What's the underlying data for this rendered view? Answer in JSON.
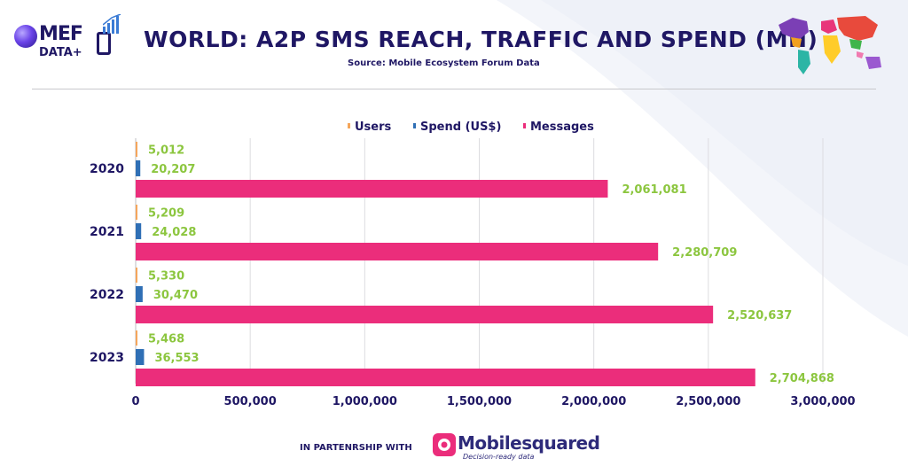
{
  "header": {
    "logo_top": "MEF",
    "logo_bottom": "DATA+",
    "title": "WORLD: A2P SMS REACH, TRAFFIC AND SPEND (MN)",
    "subtitle": "Source: Mobile Ecosystem Forum Data"
  },
  "footer": {
    "partnership_label": "IN PARTENRSHIP WITH",
    "partner_name": "Mobilesquared",
    "partner_tagline": "Decision-ready data"
  },
  "colors": {
    "users": "#f5a65b",
    "spend": "#2f6fb5",
    "messages": "#eb2d7b",
    "data_label": "#8cc63f",
    "title": "#1f1764"
  },
  "chart_data": {
    "type": "bar",
    "orientation": "horizontal",
    "categories": [
      "2020",
      "2021",
      "2022",
      "2023"
    ],
    "series": [
      {
        "name": "Users",
        "values": [
          5012,
          5209,
          5330,
          5468
        ],
        "labels": [
          "5,012",
          "5,209",
          "5,330",
          "5,468"
        ]
      },
      {
        "name": "Spend (US$)",
        "values": [
          20207,
          24028,
          30470,
          36553
        ],
        "labels": [
          "20,207",
          "24,028",
          "30,470",
          "36,553"
        ]
      },
      {
        "name": "Messages",
        "values": [
          2061081,
          2280709,
          2520637,
          2704868
        ],
        "labels": [
          "2,061,081",
          "2,280,709",
          "2,520,637",
          "2,704,868"
        ]
      }
    ],
    "xlim": [
      0,
      3000000
    ],
    "xticks": [
      0,
      500000,
      1000000,
      1500000,
      2000000,
      2500000,
      3000000
    ],
    "xtick_labels": [
      "0",
      "500,000",
      "1,000,000",
      "1,500,000",
      "2,000,000",
      "2,500,000",
      "3,000,000"
    ],
    "grid": true,
    "legend_position": "top"
  }
}
